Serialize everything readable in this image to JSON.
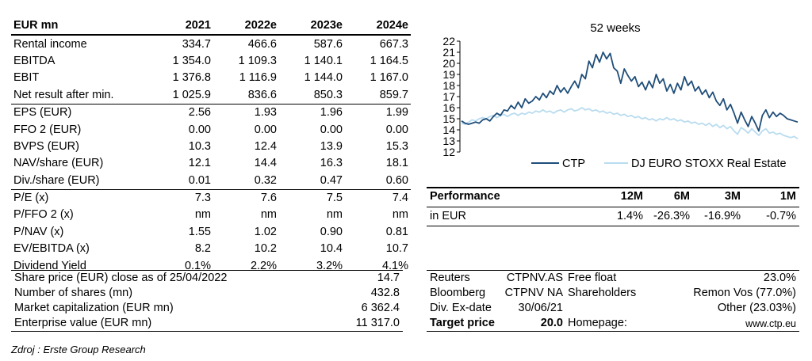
{
  "financials": {
    "header": [
      "EUR mn",
      "2021",
      "2022e",
      "2023e",
      "2024e"
    ],
    "rows": [
      [
        "Rental income",
        "334.7",
        "466.6",
        "587.6",
        "667.3"
      ],
      [
        "EBITDA",
        "1 354.0",
        "1 109.3",
        "1 140.1",
        "1 164.5"
      ],
      [
        "EBIT",
        "1 376.8",
        "1 116.9",
        "1 144.0",
        "1 167.0"
      ],
      [
        "Net result after min.",
        "1 025.9",
        "836.6",
        "850.3",
        "859.7"
      ],
      [
        "EPS (EUR)",
        "2.56",
        "1.93",
        "1.96",
        "1.99"
      ],
      [
        "FFO 2 (EUR)",
        "0.00",
        "0.00",
        "0.00",
        "0.00"
      ],
      [
        "BVPS (EUR)",
        "10.3",
        "12.4",
        "13.9",
        "15.3"
      ],
      [
        "NAV/share (EUR)",
        "12.1",
        "14.4",
        "16.3",
        "18.1"
      ],
      [
        "Div./share (EUR)",
        "0.01",
        "0.32",
        "0.47",
        "0.60"
      ],
      [
        "P/E (x)",
        "7.3",
        "7.6",
        "7.5",
        "7.4"
      ],
      [
        "P/FFO 2 (x)",
        "nm",
        "nm",
        "nm",
        "nm"
      ],
      [
        "P/NAV (x)",
        "1.55",
        "1.02",
        "0.90",
        "0.81"
      ],
      [
        "EV/EBITDA (x)",
        "8.2",
        "10.2",
        "10.4",
        "10.7"
      ],
      [
        "Dividend Yield",
        "0.1%",
        "2.2%",
        "3.2%",
        "4.1%"
      ]
    ]
  },
  "share_info": [
    {
      "label": "Share price (EUR) close as of 25/04/2022",
      "value": "14.7"
    },
    {
      "label": "Number of shares (mn)",
      "value": "432.8"
    },
    {
      "label": "Market capitalization (EUR mn)",
      "value": "6 362.4"
    },
    {
      "label": "Enterprise value (EUR mn)",
      "value": "11 317.0"
    }
  ],
  "performance": {
    "title": "Performance",
    "periods": [
      "12M",
      "6M",
      "3M",
      "1M"
    ],
    "row_label": "in EUR",
    "values": [
      "1.4%",
      "-26.3%",
      "-16.9%",
      "-0.7%"
    ]
  },
  "identifiers": {
    "reuters_label": "Reuters",
    "reuters_value": "CTPNV.AS",
    "bloomberg_label": "Bloomberg",
    "bloomberg_value": "CTPNV NA",
    "exdate_label": "Div. Ex-date",
    "exdate_value": "30/06/21",
    "target_label": "Target price",
    "target_value": "20.0",
    "freefloat_label": "Free float",
    "freefloat_value": "23.0%",
    "shareholders_label": "Shareholders",
    "shareholders_value1": "Remon Vos (77.0%)",
    "shareholders_value2": "Other (23.03%)",
    "homepage_label": "Homepage:",
    "homepage_value": "www.ctp.eu"
  },
  "source": "Zdroj : Erste Group Research",
  "chart_data": {
    "type": "line",
    "title": "52 weeks",
    "ylim": [
      12,
      22
    ],
    "yticks": [
      "12",
      "13",
      "14",
      "15",
      "16",
      "17",
      "18",
      "19",
      "20",
      "21",
      "22"
    ],
    "grid": false,
    "legend": "bottom",
    "series": [
      {
        "name": "CTP",
        "color": "#1f4e79",
        "values": [
          14.8,
          14.6,
          14.5,
          14.6,
          14.7,
          14.6,
          14.9,
          15.0,
          14.8,
          15.2,
          15.5,
          15.3,
          15.8,
          15.7,
          16.2,
          15.9,
          16.5,
          16.0,
          16.8,
          16.4,
          16.6,
          17.0,
          16.7,
          17.3,
          16.9,
          17.5,
          17.2,
          18.0,
          17.4,
          17.8,
          17.3,
          17.9,
          18.4,
          17.8,
          19.0,
          18.6,
          20.2,
          19.6,
          20.8,
          20.1,
          21.0,
          20.4,
          20.9,
          19.6,
          19.3,
          18.2,
          19.5,
          18.9,
          18.4,
          18.8,
          17.9,
          18.3,
          17.6,
          18.4,
          17.8,
          19.0,
          18.2,
          18.6,
          17.5,
          18.1,
          17.3,
          18.2,
          17.6,
          18.8,
          18.0,
          18.4,
          17.5,
          17.9,
          17.2,
          17.6,
          16.9,
          17.4,
          16.6,
          16.2,
          16.8,
          15.8,
          16.3,
          15.5,
          14.6,
          15.6,
          14.9,
          14.3,
          15.2,
          14.6,
          13.9,
          15.3,
          15.8,
          15.1,
          15.6,
          15.2,
          15.5,
          15.3,
          15.0,
          14.9,
          14.8,
          14.7
        ]
      },
      {
        "name": "DJ EURO STOXX Real Estate",
        "color": "#b9dcf0",
        "values": [
          14.6,
          14.5,
          14.7,
          14.9,
          14.8,
          15.0,
          15.1,
          15.0,
          15.2,
          15.3,
          15.1,
          15.3,
          15.4,
          15.2,
          15.4,
          15.5,
          15.3,
          15.5,
          15.4,
          15.6,
          15.5,
          15.7,
          15.6,
          15.8,
          15.6,
          15.7,
          15.5,
          15.7,
          15.8,
          15.6,
          15.8,
          15.9,
          15.7,
          15.8,
          16.0,
          15.8,
          15.9,
          15.7,
          15.8,
          15.6,
          15.7,
          15.5,
          15.6,
          15.4,
          15.5,
          15.3,
          15.4,
          15.2,
          15.3,
          15.1,
          15.2,
          15.0,
          15.1,
          14.9,
          15.0,
          14.8,
          15.0,
          14.9,
          15.1,
          14.9,
          15.0,
          14.8,
          14.9,
          14.7,
          14.8,
          14.6,
          14.7,
          14.5,
          14.6,
          14.4,
          14.6,
          14.3,
          14.5,
          14.2,
          14.4,
          14.1,
          14.3,
          13.9,
          13.6,
          14.2,
          14.0,
          13.7,
          14.1,
          13.8,
          13.5,
          13.9,
          14.1,
          13.7,
          13.8,
          13.6,
          13.7,
          13.5,
          13.4,
          13.3,
          13.4,
          13.2
        ]
      }
    ]
  }
}
